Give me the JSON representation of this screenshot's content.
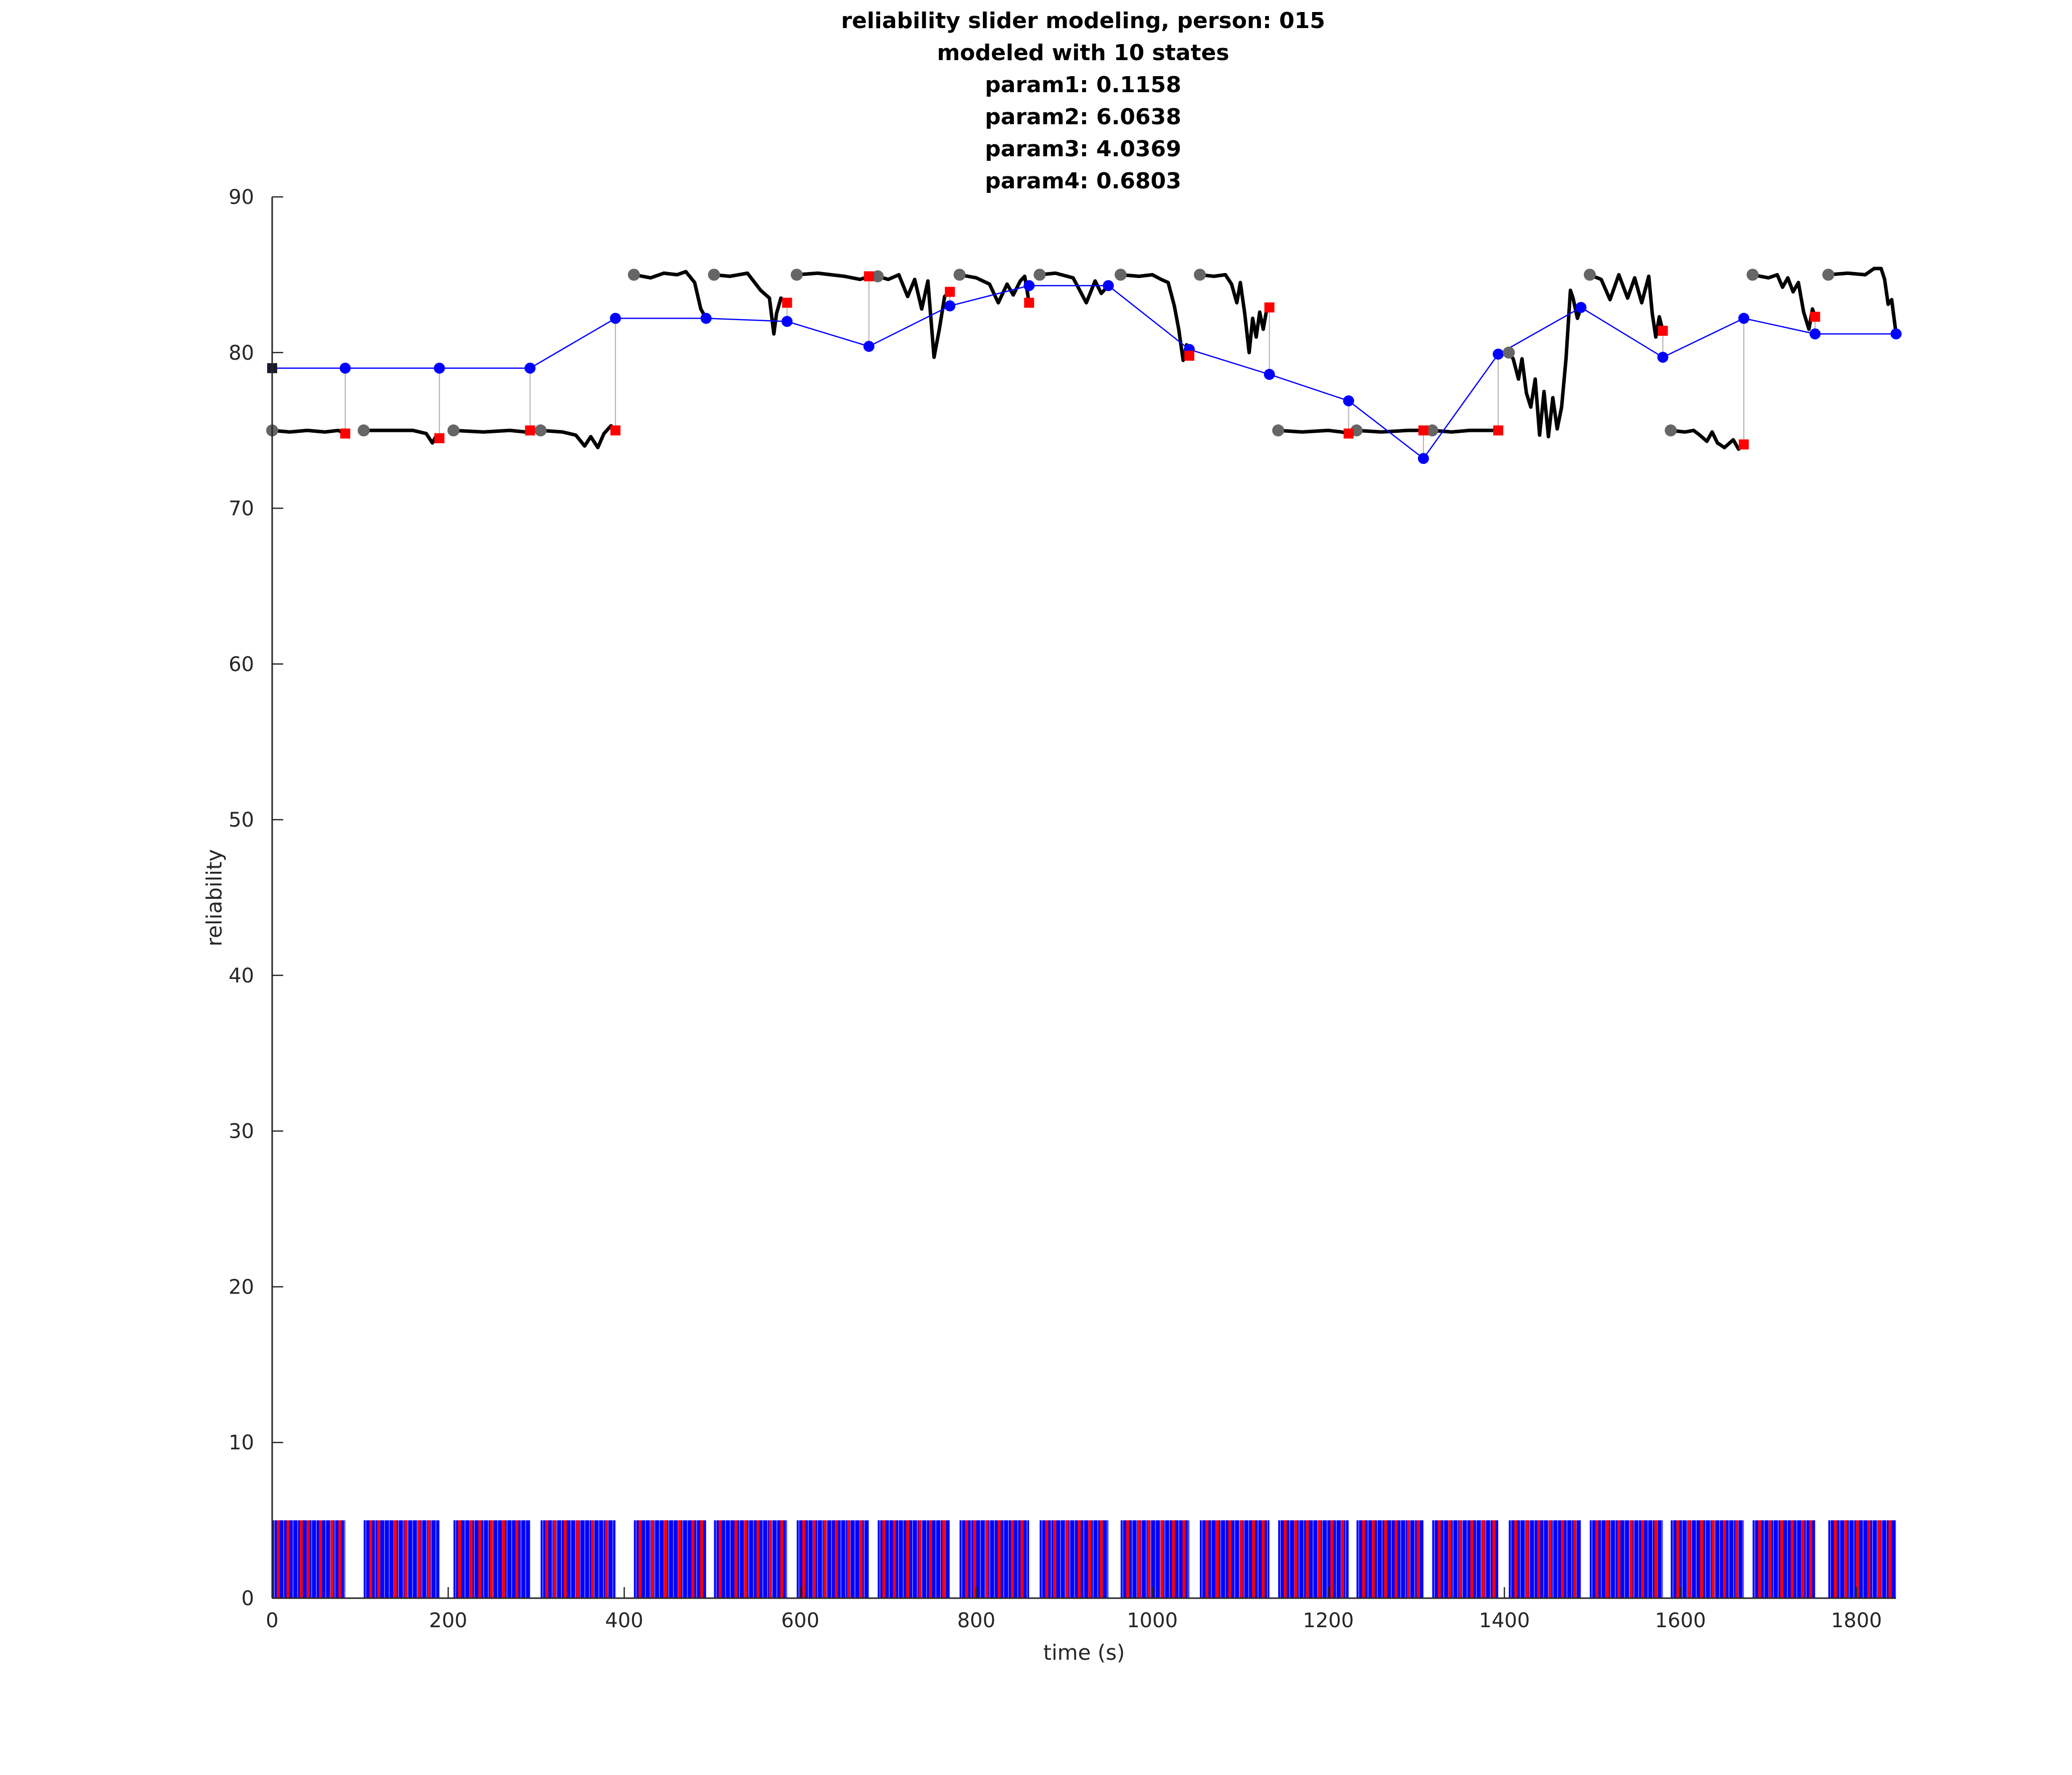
{
  "chart_data": {
    "type": "line",
    "title_lines": [
      "reliability slider modeling, person: 015",
      "modeled with 10 states",
      "param1: 0.1158",
      "param2: 6.0638",
      "param3: 4.0369",
      "param4: 0.6803"
    ],
    "xlabel": "time (s)",
    "ylabel": "reliability",
    "xlim": [
      0,
      1845
    ],
    "ylim": [
      0,
      90
    ],
    "xticks": [
      0,
      200,
      400,
      600,
      800,
      1000,
      1200,
      1400,
      1600,
      1800
    ],
    "yticks": [
      0,
      10,
      20,
      30,
      40,
      50,
      60,
      70,
      80,
      90
    ],
    "grid": false,
    "legend": "none",
    "colors": {
      "model": "#0000ff",
      "observed": "#000000",
      "start_marker": "#666666",
      "response_marker": "#ff0000",
      "initial_marker": "#1a1a2e",
      "connector": "#b0b0b0",
      "event_blue": "#0000ff",
      "event_red": "#ff0000"
    },
    "initial_point": {
      "x": 0,
      "y": 79
    },
    "model_series": {
      "x": [
        0,
        83,
        190,
        293,
        390,
        493,
        585,
        678,
        770,
        860,
        950,
        1042,
        1133,
        1223,
        1308,
        1393,
        1487,
        1580,
        1672,
        1753,
        1845
      ],
      "y": [
        79,
        79,
        79,
        79,
        82.2,
        82.2,
        82,
        80.4,
        83,
        84.3,
        84.3,
        80.2,
        78.6,
        76.9,
        73.2,
        79.9,
        82.9,
        79.7,
        82.2,
        81.2,
        81.2
      ]
    },
    "response_markers": {
      "x": [
        83,
        190,
        293,
        390,
        585,
        678,
        770,
        860,
        1042,
        1133,
        1223,
        1308,
        1393,
        1580,
        1672,
        1753
      ],
      "y": [
        74.8,
        74.5,
        75,
        75,
        83.2,
        84.9,
        83.9,
        83.2,
        79.8,
        82.9,
        74.8,
        75,
        75,
        81.4,
        74.1,
        82.3
      ]
    },
    "observed_segments": [
      {
        "x": [
          0,
          20,
          40,
          60,
          75,
          83
        ],
        "y": [
          75,
          74.9,
          75,
          74.9,
          75,
          74.8
        ]
      },
      {
        "x": [
          104,
          130,
          160,
          175,
          182,
          186,
          190
        ],
        "y": [
          75,
          75,
          75,
          74.8,
          74.2,
          74.6,
          74.5
        ]
      },
      {
        "x": [
          206,
          240,
          270,
          288,
          293
        ],
        "y": [
          75,
          74.9,
          75,
          74.9,
          75
        ]
      },
      {
        "x": [
          305,
          330,
          345,
          355,
          362,
          370,
          377,
          385,
          390
        ],
        "y": [
          75,
          74.9,
          74.7,
          74,
          74.6,
          73.9,
          74.8,
          75.3,
          75
        ]
      },
      {
        "x": [
          411,
          430,
          445,
          460,
          470,
          480,
          487,
          493
        ],
        "y": [
          85,
          84.8,
          85.1,
          85,
          85.2,
          84.5,
          82.8,
          82.2
        ]
      },
      {
        "x": [
          502,
          520,
          540,
          555,
          565,
          570,
          573,
          578,
          585
        ],
        "y": [
          85,
          84.9,
          85.1,
          84,
          83.5,
          81.2,
          82.5,
          83.5,
          83.2
        ]
      },
      {
        "x": [
          596,
          620,
          650,
          668,
          678
        ],
        "y": [
          85,
          85.1,
          84.9,
          84.7,
          84.9
        ]
      },
      {
        "x": [
          688,
          700,
          712,
          722,
          730,
          738,
          745,
          752,
          758,
          764,
          770
        ],
        "y": [
          84.9,
          84.7,
          85,
          83.6,
          84.7,
          82.8,
          84.6,
          79.7,
          81.5,
          83.6,
          83.9
        ]
      },
      {
        "x": [
          781,
          800,
          815,
          825,
          835,
          842,
          850,
          855,
          860
        ],
        "y": [
          85,
          84.8,
          84.4,
          83.2,
          84.4,
          83.7,
          84.6,
          84.9,
          83.2
        ]
      },
      {
        "x": [
          872,
          890,
          910,
          925,
          935,
          942,
          950
        ],
        "y": [
          85,
          85.1,
          84.8,
          83.2,
          84.6,
          83.8,
          84.3
        ]
      },
      {
        "x": [
          964,
          985,
          1000,
          1010,
          1018,
          1025,
          1030,
          1035,
          1039,
          1042
        ],
        "y": [
          85,
          84.9,
          85,
          84.7,
          84.5,
          83,
          81.5,
          79.5,
          80.5,
          79.8
        ]
      },
      {
        "x": [
          1054,
          1070,
          1083,
          1090,
          1096,
          1100,
          1105,
          1110,
          1114,
          1118,
          1122,
          1126,
          1130,
          1133
        ],
        "y": [
          85,
          84.9,
          85,
          84.4,
          83.2,
          84.5,
          82.5,
          80,
          82.2,
          81,
          82.6,
          81.5,
          82.8,
          82.9
        ]
      },
      {
        "x": [
          1143,
          1170,
          1200,
          1215,
          1223
        ],
        "y": [
          75,
          74.9,
          75,
          74.9,
          74.8
        ]
      },
      {
        "x": [
          1232,
          1260,
          1290,
          1308
        ],
        "y": [
          75,
          74.9,
          75,
          75
        ]
      },
      {
        "x": [
          1318,
          1340,
          1360,
          1380,
          1393
        ],
        "y": [
          75,
          74.9,
          75,
          75,
          75
        ]
      },
      {
        "x": [
          1405,
          1410,
          1416,
          1420,
          1425,
          1430,
          1435,
          1440,
          1445,
          1450,
          1455,
          1460,
          1465,
          1470,
          1475,
          1478,
          1483,
          1487
        ],
        "y": [
          80,
          79.6,
          78.3,
          79.6,
          77.4,
          76.5,
          78.3,
          74.7,
          77.5,
          74.6,
          77.1,
          75.1,
          76.5,
          79.6,
          84,
          83.5,
          82.2,
          82.9
        ]
      },
      {
        "x": [
          1497,
          1510,
          1520,
          1530,
          1540,
          1548,
          1556,
          1564,
          1568,
          1572,
          1576,
          1580
        ],
        "y": [
          85,
          84.7,
          83.4,
          85,
          83.5,
          84.8,
          83.2,
          84.9,
          82.5,
          81,
          82.3,
          81.4
        ]
      },
      {
        "x": [
          1589,
          1605,
          1615,
          1622,
          1630,
          1636,
          1642,
          1650,
          1660,
          1666,
          1672
        ],
        "y": [
          75,
          74.9,
          75,
          74.7,
          74.3,
          74.9,
          74.2,
          73.9,
          74.4,
          73.8,
          74.1
        ]
      },
      {
        "x": [
          1682,
          1700,
          1710,
          1716,
          1722,
          1728,
          1734,
          1740,
          1746,
          1750,
          1753
        ],
        "y": [
          85,
          84.8,
          85,
          84.2,
          84.8,
          83.9,
          84.5,
          82.6,
          81.5,
          82.8,
          82.3
        ]
      },
      {
        "x": [
          1768,
          1790,
          1810,
          1820,
          1828,
          1832,
          1836,
          1840,
          1845
        ],
        "y": [
          85,
          85.1,
          85,
          85.4,
          85.4,
          84.7,
          83.1,
          83.4,
          81.2
        ]
      }
    ],
    "event_bar_height": 5,
    "event_blocks": [
      {
        "start": 0,
        "end": 83
      },
      {
        "start": 104,
        "end": 190
      },
      {
        "start": 206,
        "end": 293
      },
      {
        "start": 305,
        "end": 390
      },
      {
        "start": 411,
        "end": 493
      },
      {
        "start": 502,
        "end": 585
      },
      {
        "start": 596,
        "end": 678
      },
      {
        "start": 688,
        "end": 770
      },
      {
        "start": 781,
        "end": 860
      },
      {
        "start": 872,
        "end": 950
      },
      {
        "start": 964,
        "end": 1042
      },
      {
        "start": 1054,
        "end": 1133
      },
      {
        "start": 1143,
        "end": 1223
      },
      {
        "start": 1232,
        "end": 1308
      },
      {
        "start": 1318,
        "end": 1393
      },
      {
        "start": 1405,
        "end": 1487
      },
      {
        "start": 1497,
        "end": 1580
      },
      {
        "start": 1589,
        "end": 1672
      },
      {
        "start": 1682,
        "end": 1753
      },
      {
        "start": 1768,
        "end": 1845
      }
    ],
    "red_event_times": [
      7,
      18,
      33,
      41,
      55,
      68,
      77,
      112,
      121,
      140,
      152,
      167,
      178,
      213,
      226,
      236,
      249,
      263,
      278,
      312,
      321,
      333,
      347,
      364,
      380,
      418,
      432,
      447,
      463,
      478,
      488,
      509,
      527,
      538,
      552,
      566,
      579,
      604,
      616,
      628,
      641,
      655,
      669,
      695,
      707,
      722,
      736,
      748,
      763,
      789,
      798,
      812,
      826,
      841,
      852,
      880,
      889,
      903,
      917,
      929,
      942,
      972,
      985,
      996,
      1011,
      1024,
      1036,
      1062,
      1074,
      1088,
      1101,
      1115,
      1126,
      1151,
      1163,
      1176,
      1190,
      1204,
      1216,
      1240,
      1251,
      1265,
      1277,
      1291,
      1302,
      1326,
      1338,
      1350,
      1363,
      1376,
      1388,
      1413,
      1426,
      1439,
      1452,
      1466,
      1480,
      1505,
      1517,
      1530,
      1544,
      1557,
      1572,
      1597,
      1610,
      1624,
      1637,
      1650,
      1664,
      1690,
      1702,
      1715,
      1727,
      1739,
      1748,
      1776,
      1788,
      1801,
      1814,
      1826,
      1838
    ]
  }
}
